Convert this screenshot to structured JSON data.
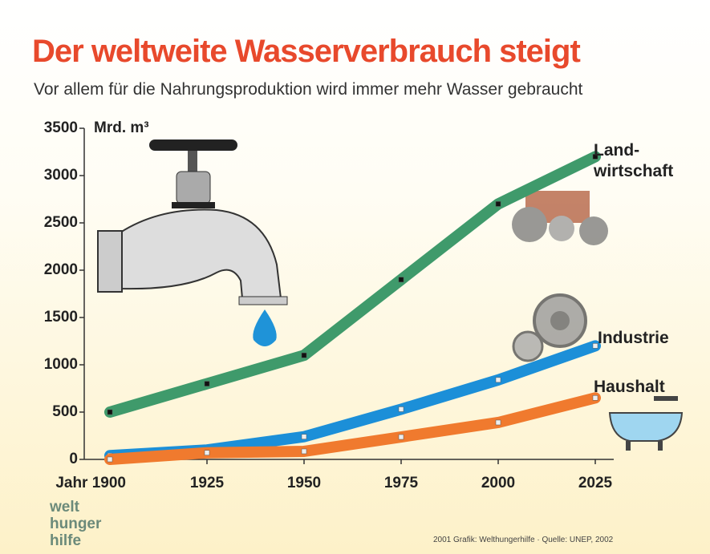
{
  "chart_data": {
    "type": "line",
    "title": "Der weltweite Wasserverbrauch steigt",
    "subtitle": "Vor allem für die Nahrungsproduktion wird immer mehr Wasser gebraucht",
    "y_label": "Mrd. m³",
    "x": [
      1900,
      1925,
      1950,
      1975,
      2000,
      2025
    ],
    "xlim": [
      1900,
      2025
    ],
    "xticks": [
      {
        "value": 1900,
        "label": "Jahr 1900"
      },
      1925,
      1950,
      1975,
      2000,
      2025
    ],
    "ylim": [
      0,
      3500
    ],
    "yticks": [
      0,
      500,
      1000,
      1500,
      2000,
      2500,
      3000,
      3500
    ],
    "grid": false,
    "series": [
      {
        "name": "Land-wirtschaft",
        "color": "#3f9a6b",
        "values": [
          500,
          800,
          1100,
          1900,
          2700,
          3200
        ]
      },
      {
        "name": "Industrie",
        "color": "#1c8fd8",
        "values": [
          40,
          100,
          240,
          530,
          840,
          1200
        ]
      },
      {
        "name": "Haushalt",
        "color": "#f07a2e",
        "values": [
          0,
          70,
          85,
          237,
          390,
          650
        ]
      }
    ],
    "logo": [
      "welt",
      "hunger",
      "hilfe"
    ],
    "source": "2001 Grafik: Welthungerhilfe · Quelle: UNEP, 2002"
  }
}
